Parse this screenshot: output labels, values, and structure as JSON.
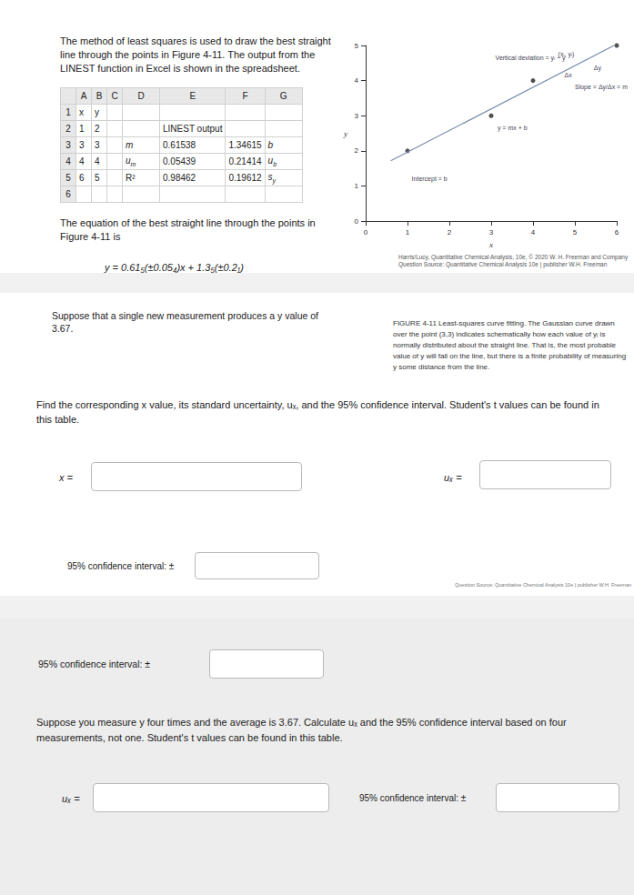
{
  "chart_data": {
    "type": "scatter",
    "x": [
      1,
      3,
      4,
      6
    ],
    "values": [
      2,
      3,
      4,
      5
    ],
    "color": "#222222",
    "xlim": [
      0,
      6
    ],
    "xticks": [
      0,
      1,
      2,
      3,
      4,
      5,
      6
    ],
    "ylim": [
      0,
      5
    ],
    "yticks": [
      0,
      1,
      2,
      3,
      4,
      5
    ],
    "xlabel": "x",
    "ylabel": "y",
    "fit_line": {
      "x": [
        0.6,
        6
      ],
      "values": [
        1.72,
        5.04
      ]
    },
    "annotations": [
      "Vertical deviation = yᵢ − y",
      "(xᵢ, yᵢ)",
      "Δx",
      "Δy",
      "Slope = Δy/Δx = m",
      "y = mx + b",
      "Intercept = b"
    ]
  },
  "document": {
    "intro": "The method of least squares is used to draw the best straight line through the points in Figure 4-11. The output from the LINEST function in Excel is shown in the spreadsheet.",
    "table": {
      "columns": [
        null,
        "A",
        "B",
        "C",
        "D",
        "E",
        "F",
        "G"
      ],
      "rows": [
        [
          "1",
          "x",
          "y",
          null,
          null,
          null,
          null,
          null
        ],
        [
          "2",
          "1",
          "2",
          null,
          null,
          "LINEST output",
          null,
          null
        ],
        [
          "3",
          "3",
          "3",
          null,
          {
            "main": "m"
          },
          "0.61538",
          "1.34615",
          {
            "main": "b"
          }
        ],
        [
          "4",
          "4",
          "4",
          null,
          {
            "main": "u",
            "sub": "m"
          },
          "0.05439",
          "0.21414",
          {
            "main": "u",
            "sub": "b"
          }
        ],
        [
          "5",
          "6",
          "5",
          null,
          "R²",
          "0.98462",
          "0.19612",
          {
            "main": "s",
            "sub": "y"
          }
        ],
        [
          "6",
          null,
          null,
          null,
          null,
          null,
          null,
          null
        ]
      ]
    },
    "equation_intro": "The equation of the best straight line through the points in Figure 4-11 is",
    "equation": "y = 0.61₅(±0.05₄)x + 1.3₅(±0.2₁)",
    "figure_credit": "Harris/Lucy, Quantitative Chemical Analysis, 10e, © 2020 W. H. Freeman and Company Question Source: Quantitative Chemical Analysis 10e | publisher W.H. Freeman",
    "question1": "Suppose that a single new measurement produces a y value of 3.67.",
    "figure_caption": "FIGURE 4-11 Least-squares curve fitting. The Gaussian curve drawn over the point (3,3) indicates schematically how each value of yᵢ is normally distributed about the straight line. That is, the most probable value of y will fall on the line, but there is a finite probability of measuring y some distance from the line.",
    "instruction1": "Find the corresponding x value, its standard uncertainty, uₓ, and the 95% confidence interval. Student's t values can be found in this table.",
    "label_x": "x =",
    "label_ux": "uₓ =",
    "label_ci": "95% confidence interval: ±",
    "source_note": "Question Source: Quantitative Chemical Analysis 10e | publisher W.H. Freeman",
    "question2": "Suppose you measure y four times and the average is 3.67. Calculate uₓ and the 95% confidence interval based on four measurements, not one. Student's t values can be found in this table."
  }
}
